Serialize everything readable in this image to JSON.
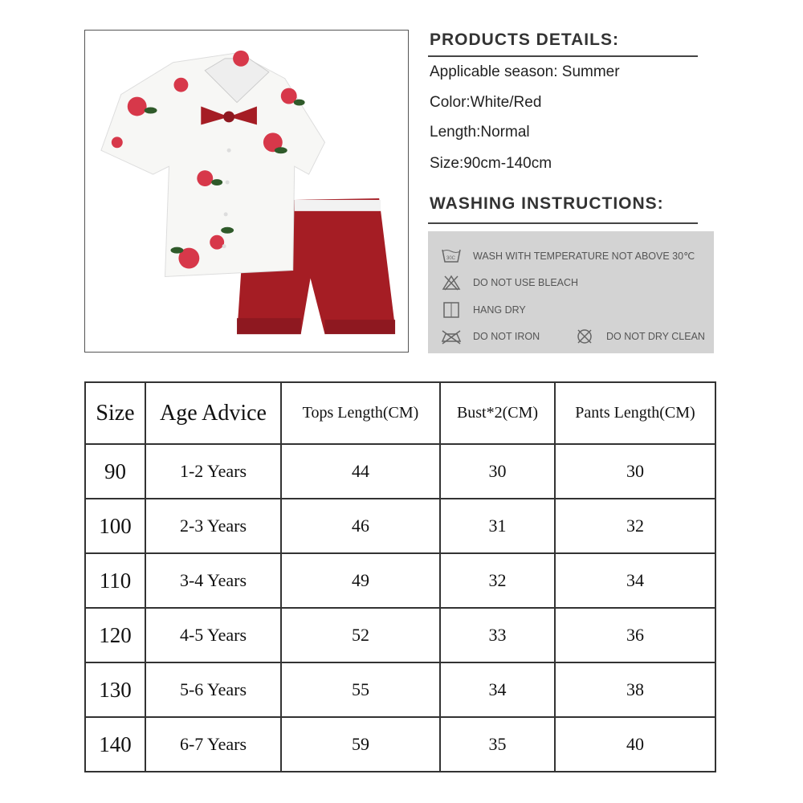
{
  "product_details": {
    "heading": "PRODUCTS DETAILS:",
    "items": [
      "Applicable season: Summer",
      "Color:White/Red",
      "Length:Normal",
      "Size:90cm-140cm"
    ]
  },
  "washing": {
    "heading": "WASHING INSTRUCTIONS:",
    "items": [
      {
        "icon": "wash-30-icon",
        "label": "WASH WITH TEMPERATURE NOT ABOVE 30℃"
      },
      {
        "icon": "no-bleach-icon",
        "label": "DO NOT USE BLEACH"
      },
      {
        "icon": "hang-dry-icon",
        "label": "HANG DRY"
      },
      {
        "icon": "no-iron-icon",
        "label": "DO NOT IRON"
      },
      {
        "icon": "no-dry-clean-icon",
        "label": "DO NOT DRY CLEAN"
      }
    ]
  },
  "size_table": {
    "headers": [
      "Size",
      "Age Advice",
      "Tops Length(CM)",
      "Bust*2(CM)",
      "Pants Length(CM)"
    ],
    "rows": [
      [
        "90",
        "1-2 Years",
        "44",
        "30",
        "30"
      ],
      [
        "100",
        "2-3 Years",
        "46",
        "31",
        "32"
      ],
      [
        "110",
        "3-4 Years",
        "49",
        "32",
        "34"
      ],
      [
        "120",
        "4-5 Years",
        "52",
        "33",
        "36"
      ],
      [
        "130",
        "5-6 Years",
        "55",
        "34",
        "38"
      ],
      [
        "140",
        "6-7 Years",
        "59",
        "35",
        "40"
      ]
    ]
  },
  "colors": {
    "shirt": "#f7f7f5",
    "shorts": "#a51d24",
    "rose": "#d7384a",
    "leaf": "#2f5a2a"
  }
}
